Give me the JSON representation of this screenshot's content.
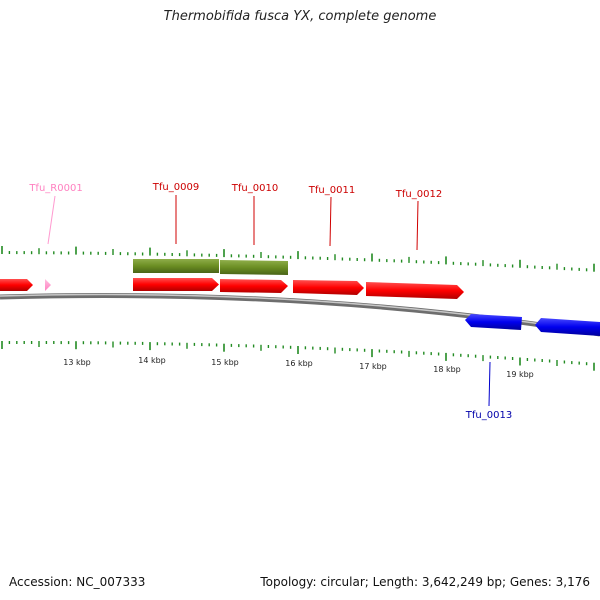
{
  "title": "Thermobifida fusca YX, complete genome",
  "footer": {
    "accession": "Accession: NC_007333",
    "summary": "Topology: circular; Length: 3,642,249 bp; Genes: 3,176"
  },
  "colors": {
    "forward_gene": "#ff0000",
    "reverse_gene": "#0000ee",
    "rrna": "#ff9ad0",
    "cds_band": "#6b8e23",
    "tick": "#228b22",
    "backbone": "#888888"
  },
  "features": [
    {
      "id": "Tfu_R0001",
      "label": "Tfu_R0001",
      "type": "rrna",
      "strand": "+"
    },
    {
      "id": "Tfu_0009",
      "label": "Tfu_0009",
      "type": "gene",
      "strand": "+"
    },
    {
      "id": "Tfu_0010",
      "label": "Tfu_0010",
      "type": "gene",
      "strand": "+"
    },
    {
      "id": "Tfu_0011",
      "label": "Tfu_0011",
      "type": "gene",
      "strand": "+"
    },
    {
      "id": "Tfu_0012",
      "label": "Tfu_0012",
      "type": "gene",
      "strand": "+"
    },
    {
      "id": "Tfu_0013",
      "label": "Tfu_0013",
      "type": "gene",
      "strand": "-"
    }
  ],
  "scale": {
    "labels": [
      "13 kbp",
      "14 kbp",
      "15 kbp",
      "16 kbp",
      "17 kbp",
      "18 kbp",
      "19 kbp"
    ]
  }
}
